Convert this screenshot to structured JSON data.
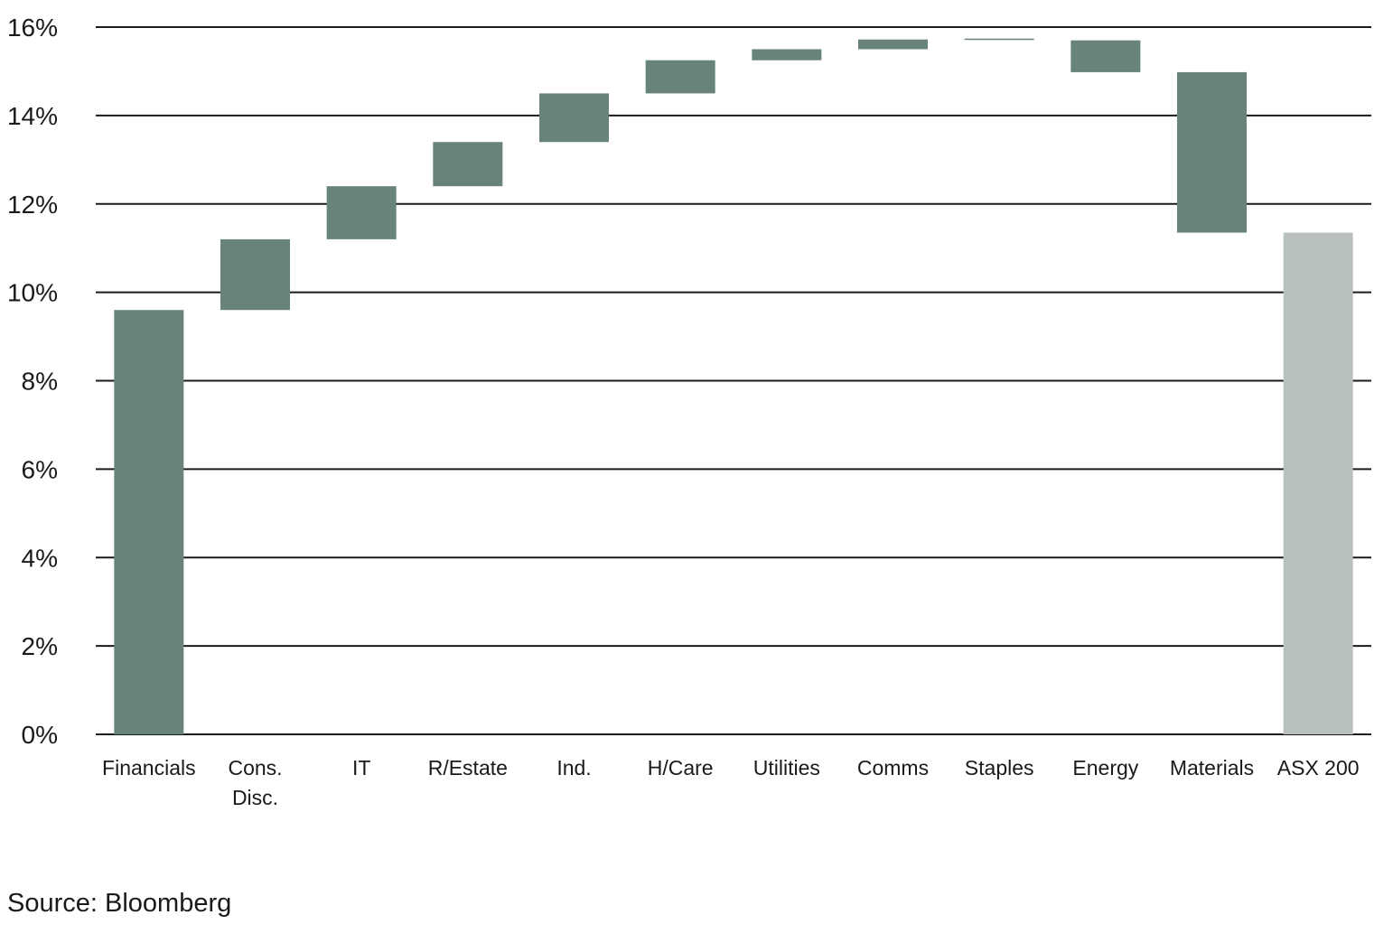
{
  "chart_data": {
    "type": "bar",
    "subtype": "waterfall",
    "title": "",
    "xlabel": "",
    "ylabel": "",
    "ylim": [
      0,
      16
    ],
    "yticks": [
      0,
      2,
      4,
      6,
      8,
      10,
      12,
      14,
      16
    ],
    "ytick_labels": [
      "0%",
      "2%",
      "4%",
      "6%",
      "8%",
      "10%",
      "12%",
      "14%",
      "16%"
    ],
    "grid": true,
    "categories": [
      [
        "Financials"
      ],
      [
        "Cons.",
        "Disc."
      ],
      [
        "IT"
      ],
      [
        "R/Estate"
      ],
      [
        "Ind."
      ],
      [
        "H/Care"
      ],
      [
        "Utilities"
      ],
      [
        "Comms"
      ],
      [
        "Staples"
      ],
      [
        "Energy"
      ],
      [
        "Materials"
      ],
      [
        "ASX 200"
      ]
    ],
    "bars": [
      {
        "start": 0.0,
        "end": 9.6,
        "kind": "increase"
      },
      {
        "start": 9.6,
        "end": 11.2,
        "kind": "increase"
      },
      {
        "start": 11.2,
        "end": 12.4,
        "kind": "increase"
      },
      {
        "start": 12.4,
        "end": 13.4,
        "kind": "increase"
      },
      {
        "start": 13.4,
        "end": 14.5,
        "kind": "increase"
      },
      {
        "start": 14.5,
        "end": 15.25,
        "kind": "increase"
      },
      {
        "start": 15.25,
        "end": 15.5,
        "kind": "increase"
      },
      {
        "start": 15.5,
        "end": 15.72,
        "kind": "increase"
      },
      {
        "start": 15.72,
        "end": 15.74,
        "kind": "increase"
      },
      {
        "start": 15.7,
        "end": 14.98,
        "kind": "decrease"
      },
      {
        "start": 14.98,
        "end": 11.35,
        "kind": "decrease"
      },
      {
        "start": 0.0,
        "end": 11.35,
        "kind": "total"
      }
    ],
    "colors": {
      "change": "#68837a",
      "total": "#b9c1bd",
      "grid": "#1a1a1a"
    }
  },
  "source": "Source: Bloomberg"
}
